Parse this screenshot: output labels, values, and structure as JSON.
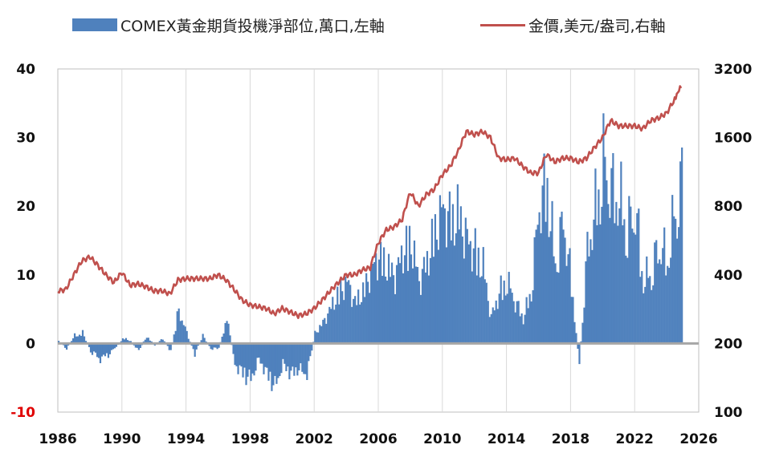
{
  "chart_data": {
    "type": "bar+line",
    "title": "",
    "legend": [
      {
        "name": "COMEX黃金期貨投機淨部位,萬口,左軸",
        "type": "bar",
        "color": "#4f81bd"
      },
      {
        "name": "金價,美元/盎司,右軸",
        "type": "line",
        "color": "#c0504d"
      }
    ],
    "x_axis": {
      "range": [
        1986,
        2026
      ],
      "ticks": [
        "1986",
        "1990",
        "1994",
        "1998",
        "2002",
        "2006",
        "2010",
        "2014",
        "2018",
        "2022",
        "2026"
      ]
    },
    "y_left": {
      "range": [
        -10,
        40
      ],
      "ticks": [
        "-10",
        "0",
        "10",
        "20",
        "30",
        "40"
      ],
      "negative_tick_color": "#e00000"
    },
    "y_right": {
      "scale": "log",
      "range": [
        100,
        3200
      ],
      "ticks": [
        "100",
        "200",
        "400",
        "800",
        "1600",
        "3200"
      ]
    },
    "grid": "vertical",
    "series": [
      {
        "name": "COMEX黃金期貨投機淨部位,萬口,左軸",
        "type": "bar",
        "axis": "left",
        "x": [
          1986.0,
          1986.5,
          1987.0,
          1987.5,
          1988.0,
          1988.5,
          1989.0,
          1989.5,
          1990.0,
          1990.5,
          1991.0,
          1991.5,
          1992.0,
          1992.5,
          1993.0,
          1993.5,
          1994.0,
          1994.5,
          1995.0,
          1995.5,
          1996.0,
          1996.5,
          1997.0,
          1997.5,
          1998.0,
          1998.5,
          1999.0,
          1999.5,
          2000.0,
          2000.5,
          2001.0,
          2001.5,
          2002.0,
          2002.5,
          2003.0,
          2003.5,
          2004.0,
          2004.5,
          2005.0,
          2005.5,
          2006.0,
          2006.5,
          2007.0,
          2007.5,
          2008.0,
          2008.5,
          2009.0,
          2009.5,
          2010.0,
          2010.5,
          2011.0,
          2011.5,
          2012.0,
          2012.5,
          2013.0,
          2013.5,
          2014.0,
          2014.5,
          2015.0,
          2015.5,
          2016.0,
          2016.5,
          2017.0,
          2017.5,
          2018.0,
          2018.5,
          2019.0,
          2019.5,
          2020.0,
          2020.5,
          2021.0,
          2021.5,
          2022.0,
          2022.5,
          2023.0,
          2023.5,
          2024.0,
          2024.5,
          2024.9
        ],
        "values": [
          0.5,
          -1.0,
          1.5,
          2.0,
          -1.5,
          -3.0,
          -2.5,
          -1.0,
          1.0,
          0.5,
          -1.5,
          1.5,
          -0.5,
          1.0,
          -1.5,
          6.5,
          2.0,
          -2.0,
          1.5,
          -1.0,
          -1.0,
          5.0,
          -4.0,
          -6.0,
          -7.0,
          -3.0,
          -6.0,
          -8.5,
          -4.0,
          -6.0,
          -5.0,
          -6.0,
          2.0,
          4.0,
          7.0,
          10.0,
          12.0,
          8.0,
          10.0,
          14.0,
          17.0,
          15.0,
          13.0,
          18.0,
          20.0,
          12.0,
          16.0,
          22.0,
          26.0,
          24.0,
          25.0,
          20.0,
          18.0,
          15.0,
          5.0,
          10.0,
          12.0,
          8.0,
          5.0,
          10.0,
          27.0,
          31.0,
          15.0,
          24.0,
          12.0,
          -4.0,
          18.0,
          26.0,
          35.0,
          30.0,
          28.0,
          22.0,
          26.0,
          12.0,
          14.0,
          19.0,
          16.0,
          26.0,
          31.0
        ]
      },
      {
        "name": "金價,美元/盎司,右軸",
        "type": "line",
        "axis": "right",
        "x": [
          1986.0,
          1986.5,
          1987.0,
          1987.5,
          1988.0,
          1988.5,
          1989.0,
          1989.5,
          1990.0,
          1990.5,
          1991.0,
          1991.5,
          1992.0,
          1992.5,
          1993.0,
          1993.5,
          1994.0,
          1994.5,
          1995.0,
          1995.5,
          1996.0,
          1996.5,
          1997.0,
          1997.5,
          1998.0,
          1998.5,
          1999.0,
          1999.5,
          2000.0,
          2000.5,
          2001.0,
          2001.5,
          2002.0,
          2002.5,
          2003.0,
          2003.5,
          2004.0,
          2004.5,
          2005.0,
          2005.5,
          2006.0,
          2006.5,
          2007.0,
          2007.5,
          2008.0,
          2008.5,
          2009.0,
          2009.5,
          2010.0,
          2010.5,
          2011.0,
          2011.5,
          2012.0,
          2012.5,
          2013.0,
          2013.5,
          2014.0,
          2014.5,
          2015.0,
          2015.5,
          2016.0,
          2016.5,
          2017.0,
          2017.5,
          2018.0,
          2018.5,
          2019.0,
          2019.5,
          2020.0,
          2020.5,
          2021.0,
          2021.5,
          2022.0,
          2022.5,
          2023.0,
          2023.5,
          2024.0,
          2024.5,
          2024.9
        ],
        "values": [
          340,
          345,
          400,
          460,
          480,
          440,
          400,
          370,
          410,
          360,
          365,
          355,
          340,
          340,
          330,
          380,
          385,
          385,
          385,
          385,
          400,
          380,
          345,
          310,
          295,
          290,
          285,
          270,
          285,
          275,
          265,
          270,
          285,
          310,
          340,
          370,
          400,
          400,
          420,
          430,
          550,
          630,
          650,
          700,
          920,
          800,
          900,
          950,
          1100,
          1200,
          1400,
          1700,
          1650,
          1700,
          1600,
          1300,
          1280,
          1300,
          1200,
          1120,
          1120,
          1350,
          1250,
          1300,
          1300,
          1250,
          1300,
          1450,
          1600,
          1900,
          1800,
          1800,
          1800,
          1750,
          1900,
          1950,
          2050,
          2350,
          2700
        ]
      }
    ]
  }
}
